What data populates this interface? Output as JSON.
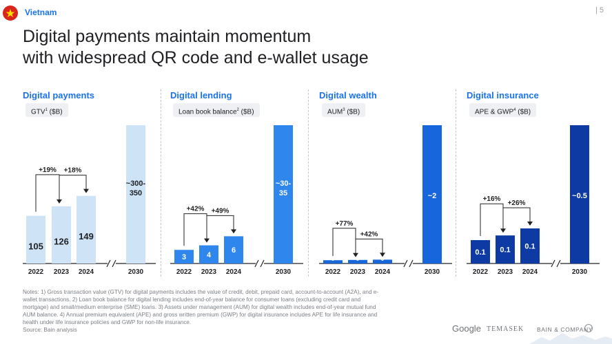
{
  "header": {
    "country": "Vietnam",
    "page_number": "| 5",
    "title_line1": "Digital payments maintain momentum",
    "title_line2": "with widespread QR code and e-wallet usage"
  },
  "colors": {
    "accent": "#1a73e8",
    "payments_bars": "#cfe3f7",
    "lending_bars": "#2f86ec",
    "wealth_bars": "#1766dc",
    "insurance_bars": "#0d3aa3"
  },
  "chart_data": [
    {
      "type": "bar",
      "title": "Digital payments",
      "metric": "GTV",
      "metric_sup": "1",
      "metric_unit": " ($B)",
      "categories": [
        "2022",
        "2023",
        "2024",
        "2030"
      ],
      "values": [
        105,
        126,
        149,
        325
      ],
      "data_labels": [
        "105",
        "126",
        "149",
        "~300-\n350"
      ],
      "growth": [
        {
          "from": "2022",
          "to": "2023",
          "label": "+19%"
        },
        {
          "from": "2023",
          "to": "2024",
          "label": "+18%"
        }
      ],
      "axis_break_before": "2030"
    },
    {
      "type": "bar",
      "title": "Digital lending",
      "metric": "Loan book balance",
      "metric_sup": "2",
      "metric_unit": " ($B)",
      "categories": [
        "2022",
        "2023",
        "2024",
        "2030"
      ],
      "values": [
        3,
        4,
        6,
        32.5
      ],
      "data_labels": [
        "3",
        "4",
        "6",
        "~30-\n35"
      ],
      "growth": [
        {
          "from": "2022",
          "to": "2023",
          "label": "+42%"
        },
        {
          "from": "2023",
          "to": "2024",
          "label": "+49%"
        }
      ],
      "axis_break_before": "2030"
    },
    {
      "type": "bar",
      "title": "Digital wealth",
      "metric": "AUM",
      "metric_sup": "3",
      "metric_unit": " ($B)",
      "categories": [
        "2022",
        "2023",
        "2024",
        "2030"
      ],
      "values": [
        0.1,
        0.15,
        0.2,
        2
      ],
      "data_labels": [
        "0",
        "0",
        "0",
        "~2"
      ],
      "growth": [
        {
          "from": "2022",
          "to": "2023",
          "label": "+77%"
        },
        {
          "from": "2023",
          "to": "2024",
          "label": "+42%"
        }
      ],
      "axis_break_before": "2030"
    },
    {
      "type": "bar",
      "title": "Digital insurance",
      "metric": "APE & GWP",
      "metric_sup": "4",
      "metric_unit": " ($B)",
      "categories": [
        "2022",
        "2023",
        "2024",
        "2030"
      ],
      "values": [
        0.1,
        0.12,
        0.15,
        0.5
      ],
      "data_labels": [
        "0.1",
        "0.1",
        "0.1",
        "~0.5"
      ],
      "growth": [
        {
          "from": "2022",
          "to": "2023",
          "label": "+16%"
        },
        {
          "from": "2023",
          "to": "2024",
          "label": "+26%"
        }
      ],
      "axis_break_before": "2030"
    }
  ],
  "notes": "Notes: 1) Gross transaction value (GTV) for digital payments includes the value of credit, debit, prepaid card, account-to-account (A2A), and e-wallet transactions. 2) Loan book balance for digital lending includes end-of-year balance for consumer loans (excluding credit card and mortgage) and small/medium enterprise (SME) loans. 3) Assets under management (AUM) for digital wealth includes end-of-year mutual fund AUM balance. 4) Annual premium equivalent (APE) and gross written premium (GWP) for digital insurance includes APE for life insurance and health under life insurance policies and GWP for non-life insurance.",
  "source": "Source: Bain analysis",
  "logos": {
    "google": "Google",
    "temasek": "TEMASEK",
    "bain": "BAIN & COMPANY"
  }
}
